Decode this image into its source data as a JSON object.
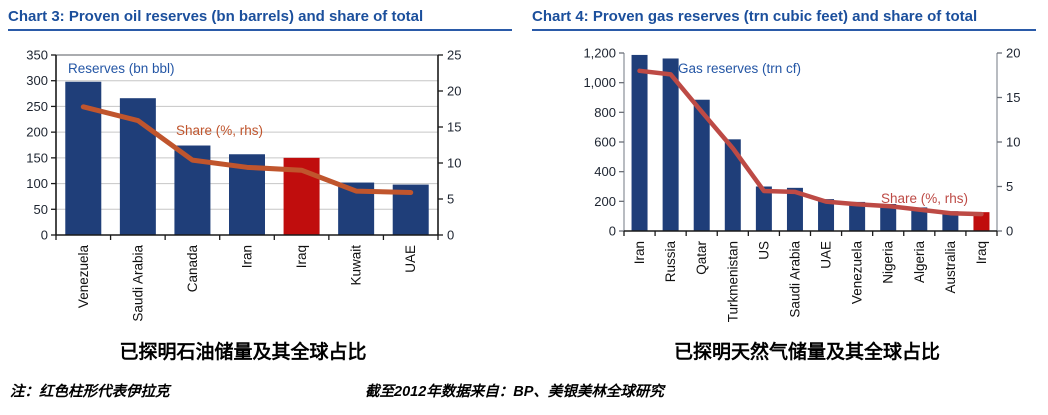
{
  "chart_data": [
    {
      "id": "oil",
      "type": "bar",
      "title": "Chart 3: Proven oil reserves (bn barrels) and share of total",
      "caption": "已探明石油储量及其全球占比",
      "categories": [
        "Venezuela",
        "Saudi Arabia",
        "Canada",
        "Iran",
        "Iraq",
        "Kuwait",
        "UAE"
      ],
      "series": [
        {
          "name": "Reserves (bn bbl)",
          "type": "bar",
          "axis": "left",
          "color": "#1f3e79",
          "highlight_index": 4,
          "highlight_color": "#c00d0d",
          "values": [
            298,
            266,
            174,
            157,
            150,
            102,
            98
          ]
        },
        {
          "name": "Share (%, rhs)",
          "type": "line",
          "axis": "right",
          "color": "#c0552d",
          "values": [
            17.8,
            15.9,
            10.4,
            9.4,
            9.0,
            6.1,
            5.9
          ]
        }
      ],
      "left_axis": {
        "min": 0,
        "max": 350,
        "step": 50,
        "thousands_comma": false
      },
      "right_axis": {
        "min": 0,
        "max": 25,
        "step": 5,
        "thousands_comma": false
      },
      "grid": true,
      "legend_position": "inside-top-left"
    },
    {
      "id": "gas",
      "type": "bar",
      "title": "Chart 4: Proven gas reserves (trn cubic feet) and share of total",
      "caption": "已探明天然气储量及其全球占比",
      "categories": [
        "Iran",
        "Russia",
        "Qatar",
        "Turkmenistan",
        "US",
        "Saudi Arabia",
        "UAE",
        "Venezuela",
        "Nigeria",
        "Algeria",
        "Australia",
        "Iraq"
      ],
      "series": [
        {
          "name": "Gas reserves (trn cf)",
          "type": "bar",
          "axis": "left",
          "color": "#1f3e79",
          "highlight_index": 11,
          "highlight_color": "#c00d0d",
          "values": [
            1187,
            1163,
            885,
            618,
            300,
            291,
            215,
            196,
            182,
            159,
            133,
            127
          ]
        },
        {
          "name": "Share (%, rhs)",
          "type": "line",
          "axis": "right",
          "color": "#bd4a45",
          "values": [
            18.0,
            17.6,
            13.4,
            9.3,
            4.5,
            4.4,
            3.3,
            3.0,
            2.8,
            2.4,
            2.0,
            1.9
          ]
        }
      ],
      "left_axis": {
        "min": 0,
        "max": 1200,
        "step": 200,
        "thousands_comma": true
      },
      "right_axis": {
        "min": 0,
        "max": 20,
        "step": 5,
        "thousands_comma": false
      },
      "grid": false,
      "legend_position": "inside-top"
    }
  ],
  "footer": {
    "note": "注：红色柱形代表伊拉克",
    "source": "截至2012年数据来自：BP、美银美林全球研究"
  },
  "colors": {
    "title_blue": "#1b4f9c",
    "bar_navy": "#1f3e79",
    "iraq_red": "#c00d0d",
    "oil_line_rust": "#c0552d",
    "gas_line_brick": "#bd4a45",
    "grid_gray": "#c6c6c6"
  }
}
